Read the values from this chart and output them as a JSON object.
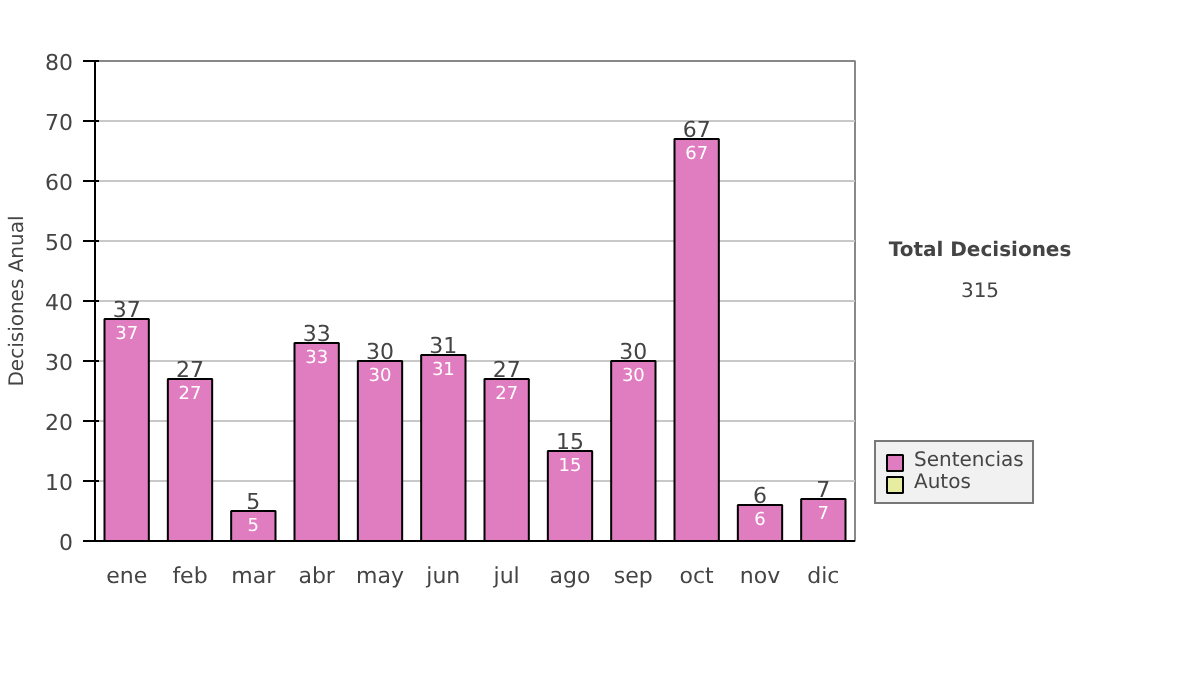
{
  "chart_data": {
    "type": "bar",
    "ylabel": "Decisiones Anual",
    "categories": [
      "ene",
      "feb",
      "mar",
      "abr",
      "may",
      "jun",
      "jul",
      "ago",
      "sep",
      "oct",
      "nov",
      "dic"
    ],
    "stacked": true,
    "series": [
      {
        "name": "Sentencias",
        "color": "#e07cc0",
        "values": [
          37,
          27,
          5,
          33,
          30,
          31,
          27,
          15,
          30,
          67,
          6,
          7
        ],
        "value_labels": [
          "37",
          "27",
          "5",
          "33",
          "30",
          "31",
          "27",
          "15",
          "30",
          "67",
          "6",
          "7"
        ]
      },
      {
        "name": "Autos",
        "color": "#e6eca0",
        "values": [
          0,
          0,
          0,
          0,
          0,
          0,
          0,
          0,
          0,
          0,
          0,
          0
        ]
      }
    ],
    "totals": [
      "37",
      "27",
      "5",
      "33",
      "30",
      "31",
      "27",
      "15",
      "30",
      "67",
      "6",
      "7"
    ],
    "ylim": [
      0,
      80
    ],
    "yticks": [
      0,
      10,
      20,
      30,
      40,
      50,
      60,
      70,
      80
    ],
    "grid": "y",
    "legend": "right",
    "annotations": [
      "Total Decisiones",
      "315"
    ]
  }
}
